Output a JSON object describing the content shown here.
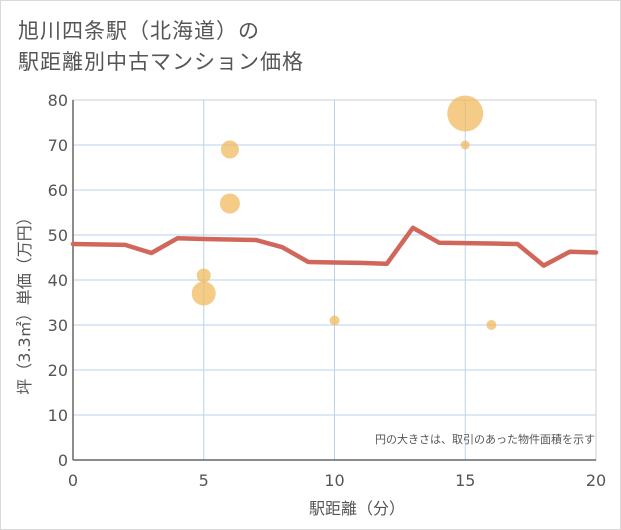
{
  "chart_data": {
    "type": "scatter",
    "title_lines": [
      "旭川四条駅（北海道）の",
      "駅距離別中古マンション価格"
    ],
    "xlabel": "駅距離（分）",
    "ylabel": "坪（3.3㎡）単価（万円）",
    "xlim": [
      0,
      20
    ],
    "ylim": [
      0,
      80
    ],
    "xticks": [
      0,
      5,
      10,
      15,
      20
    ],
    "yticks": [
      0,
      10,
      20,
      30,
      40,
      50,
      60,
      70,
      80
    ],
    "grid": true,
    "note": "円の大きさは、取引のあった物件面積を示す",
    "colors": {
      "bubble": "#f0b85a",
      "line": "#d0675a",
      "grid": "#b8d2ec",
      "axis": "#666666"
    },
    "points": [
      {
        "x": 5,
        "y": 41,
        "r": 7
      },
      {
        "x": 5,
        "y": 37,
        "r": 12
      },
      {
        "x": 6,
        "y": 69,
        "r": 9
      },
      {
        "x": 6,
        "y": 57,
        "r": 10
      },
      {
        "x": 10,
        "y": 31,
        "r": 5
      },
      {
        "x": 15,
        "y": 77,
        "r": 18
      },
      {
        "x": 15,
        "y": 70,
        "r": 4.5
      },
      {
        "x": 16,
        "y": 30,
        "r": 5
      }
    ],
    "avg_line": {
      "x": [
        0,
        2,
        3,
        4,
        5,
        6,
        7,
        8,
        9,
        10,
        11,
        12,
        13,
        14,
        15,
        16,
        17,
        18,
        19,
        20
      ],
      "y": [
        48,
        47.8,
        46,
        49.3,
        49.1,
        49,
        48.9,
        47.3,
        44,
        43.9,
        43.8,
        43.6,
        51.6,
        48.3,
        48.2,
        48.1,
        48,
        43.2,
        46.3,
        46.1
      ]
    }
  }
}
